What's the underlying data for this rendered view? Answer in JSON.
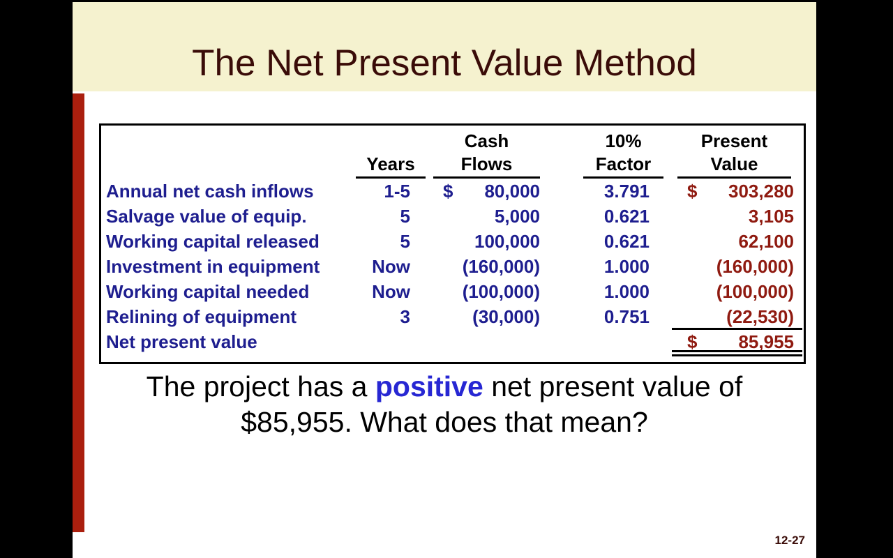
{
  "title": "The Net Present Value Method",
  "page_number": "12-27",
  "table": {
    "headers": {
      "label": "",
      "years": "Years",
      "cash_line1": "Cash",
      "cash_line2": "Flows",
      "factor_line1": "10%",
      "factor_line2": "Factor",
      "pv_line1": "Present",
      "pv_line2": "Value"
    },
    "rows": [
      {
        "label": "Annual net cash inflows",
        "years": "1-5",
        "cf_dollar": "$",
        "cf": "80,000",
        "factor": "3.791",
        "pv_dollar": "$",
        "pv": "303,280"
      },
      {
        "label": "Salvage value of equip.",
        "years": "5",
        "cf_dollar": "",
        "cf": "5,000",
        "factor": "0.621",
        "pv_dollar": "",
        "pv": "3,105"
      },
      {
        "label": "Working capital released",
        "years": "5",
        "cf_dollar": "",
        "cf": "100,000",
        "factor": "0.621",
        "pv_dollar": "",
        "pv": "62,100"
      },
      {
        "label": "Investment in equipment",
        "years": "Now",
        "cf_dollar": "",
        "cf": "(160,000)",
        "factor": "1.000",
        "pv_dollar": "",
        "pv": "(160,000)"
      },
      {
        "label": "Working capital needed",
        "years": "Now",
        "cf_dollar": "",
        "cf": "(100,000)",
        "factor": "1.000",
        "pv_dollar": "",
        "pv": "(100,000)"
      },
      {
        "label": "Relining of equipment",
        "years": "3",
        "cf_dollar": "",
        "cf": "(30,000)",
        "factor": "0.751",
        "pv_dollar": "",
        "pv": "(22,530)"
      },
      {
        "label": "Net present value",
        "years": "",
        "cf_dollar": "",
        "cf": "",
        "factor": "",
        "pv_dollar": "$",
        "pv": "85,955"
      }
    ]
  },
  "caption": {
    "line1_pre": "The project has a ",
    "line1_highlight": "positive",
    "line1_post": " net present value of",
    "line2": "$85,955. What does that mean?"
  },
  "colors": {
    "background": "#000000",
    "title_band": "#f5f2cf",
    "title_text": "#3a0c08",
    "accent_bar": "#aa1f0e",
    "table_text_navy": "#1e1e8f",
    "present_value_red": "#8f1a10",
    "highlight_blue": "#2727d3",
    "page_number_maroon": "#3a0c08"
  }
}
